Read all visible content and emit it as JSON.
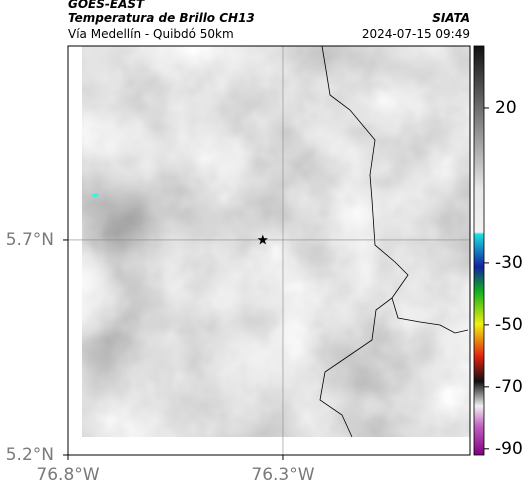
{
  "header": {
    "satellite": "GOES-EAST",
    "product": "Temperatura de Brillo CH13",
    "source": "SIATA",
    "region": "Vía Medellín - Quibdó 50km",
    "datetime": "2024-07-15 09:49"
  },
  "map": {
    "xlim": [
      -76.8,
      -75.865
    ],
    "ylim": [
      5.2,
      6.151
    ],
    "xticks": [
      {
        "value": -76.8,
        "label": "76.8°W"
      },
      {
        "value": -76.3,
        "label": "76.3°W"
      }
    ],
    "yticks": [
      {
        "value": 5.7,
        "label": "5.7°N"
      },
      {
        "value": 5.2,
        "label": "5.2°N"
      }
    ],
    "grid": true,
    "marker": {
      "lon": -76.347,
      "lat": 5.7
    }
  },
  "colorbar": {
    "lim": [
      -92,
      40
    ],
    "ticks": [
      20,
      -30,
      -50,
      -70,
      -90
    ]
  }
}
